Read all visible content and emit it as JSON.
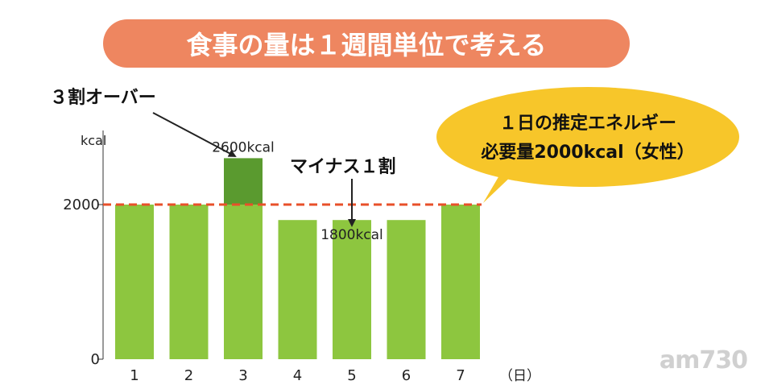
{
  "chart_data": {
    "type": "bar",
    "title": "食事の量は１週間単位で考える",
    "ylabel": "kcal",
    "xlabel": "（日）",
    "categories": [
      "1",
      "2",
      "3",
      "4",
      "5",
      "6",
      "7"
    ],
    "values": [
      2000,
      2000,
      2600,
      1800,
      1800,
      1800,
      2000
    ],
    "baseline": 2000,
    "ylim": [
      0,
      2800
    ],
    "y_tick_labels": [
      {
        "value": 0,
        "label": "0"
      },
      {
        "value": 2000,
        "label": "2000"
      }
    ],
    "data_labels": [
      {
        "category": "3",
        "text": "2600kcal"
      },
      {
        "category": "5",
        "text": "1800kcal"
      }
    ],
    "annotations": [
      {
        "text": "３割オーバー",
        "target_category": "3"
      },
      {
        "text": "マイナス１割",
        "target_category": "5"
      }
    ],
    "callout": {
      "line1": "１日の推定エネルギー",
      "line2": "必要量2000kcal（女性）"
    },
    "grid": false,
    "colors": {
      "bar": "#8dc63f",
      "excess": "#5a9a2f",
      "baseline": "#e8502a",
      "title_bg": "#ee8660",
      "callout_bg": "#f7c62a"
    }
  },
  "watermark": "am730"
}
